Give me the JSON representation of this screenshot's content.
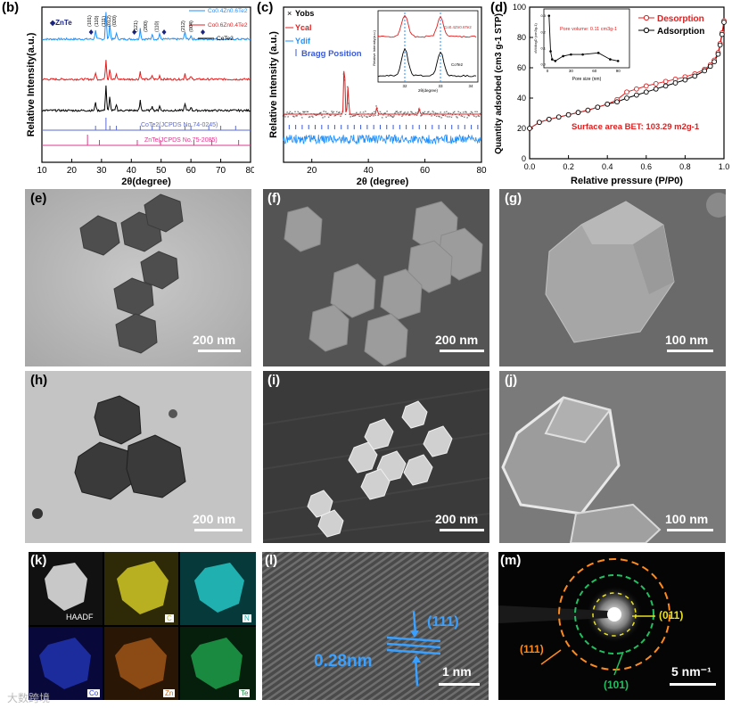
{
  "panels": {
    "b": {
      "label": "(b)",
      "ylabel": "Relative Intensity(a.u.)",
      "xlabel": "2θ(degree)",
      "legend": [
        "Co0.4Zn0.6Te2",
        "Co0.6Zn0.4Te2",
        "CoTe2"
      ],
      "znte_tag": "◆ZnTe",
      "ref_cote2": "CoTe2(JCPDS No.74-0245)",
      "ref_znte": "ZnTe(JCPDS No.75-2085)",
      "peaks": [
        "(101)",
        "(110)",
        "(111)",
        "(012)",
        "(020)",
        "(121)",
        "(200)",
        "(110)",
        "(212)",
        "(004)"
      ]
    },
    "c": {
      "label": "(c)",
      "ylabel": "Relative Intensity (a.u.)",
      "xlabel": "2θ (degree)",
      "legend": [
        "Yobs",
        "Ycal",
        "Ydif",
        "Bragg Position"
      ],
      "inset": {
        "legend_top": "Co0.4Zn0.6Te2",
        "legend_bottom": "CoTe2",
        "xlabel": "2θ(degree)",
        "ylabel": "Relative Intensity(a.u.)"
      }
    },
    "d": {
      "label": "(d)",
      "ylabel": "Quantity adsorbed (cm3 g-1 STP)",
      "xlabel": "Relative pressure (P/P0)",
      "legend": [
        "Desorption",
        "Adsorption"
      ],
      "annotation": "Surface area BET: 103.29 m2g-1",
      "inset": {
        "text": "Pore volume: 0.11 cm3g-1",
        "xlabel": "Pore size (nm)",
        "ylabel": "dV/dlogD (cm3g-1)"
      }
    },
    "e": {
      "label": "(e)",
      "scale": "200 nm"
    },
    "f": {
      "label": "(f)",
      "scale": "200 nm"
    },
    "g": {
      "label": "(g)",
      "scale": "100 nm"
    },
    "h": {
      "label": "(h)",
      "scale": "200 nm"
    },
    "i": {
      "label": "(i)",
      "scale": "200 nm"
    },
    "j": {
      "label": "(j)",
      "scale": "100 nm"
    },
    "k": {
      "label": "(k)",
      "maps": [
        "HAADF",
        "C",
        "N",
        "Co",
        "Zn",
        "Te"
      ]
    },
    "l": {
      "label": "(l)",
      "spacing": "0.28nm",
      "plane": "(111)",
      "scale": "1 nm"
    },
    "m": {
      "label": "(m)",
      "rings": [
        "(011)",
        "(111)",
        "(101)"
      ],
      "scale": "5 nm⁻¹"
    }
  },
  "watermark": "大数跨境",
  "chart_data": [
    {
      "type": "line",
      "panel": "b",
      "xlabel": "2θ(degree)",
      "ylabel": "Relative Intensity(a.u.)",
      "xlim": [
        10,
        80
      ],
      "xticks": [
        10,
        20,
        30,
        40,
        50,
        60,
        70,
        80
      ],
      "series": [
        {
          "name": "Co0.4Zn0.6Te2",
          "color": "#1e90ff"
        },
        {
          "name": "Co0.6Zn0.4Te2",
          "color": "#e02020"
        },
        {
          "name": "CoTe2",
          "color": "#000000"
        }
      ]
    },
    {
      "type": "line",
      "panel": "c",
      "xlabel": "2θ (degree)",
      "ylabel": "Relative Intensity (a.u.)",
      "xlim": [
        10,
        80
      ],
      "xticks": [
        20,
        40,
        60,
        80
      ],
      "series": [
        {
          "name": "Yobs",
          "color": "#000000"
        },
        {
          "name": "Ycal",
          "color": "#e02020"
        },
        {
          "name": "Ydif",
          "color": "#1e90ff"
        },
        {
          "name": "Bragg Position",
          "color": "#2040c0"
        }
      ]
    },
    {
      "type": "line",
      "panel": "d",
      "xlabel": "Relative pressure (P/P0)",
      "ylabel": "Quantity adsorbed (cm3 g-1 STP)",
      "xlim": [
        0.0,
        1.0
      ],
      "ylim": [
        0,
        100
      ],
      "xticks": [
        0.0,
        0.2,
        0.4,
        0.6,
        0.8,
        1.0
      ],
      "yticks": [
        0,
        20,
        40,
        60,
        80,
        100
      ],
      "series": [
        {
          "name": "Desorption",
          "color": "#e02020",
          "x": [
            0.0,
            0.05,
            0.1,
            0.15,
            0.2,
            0.25,
            0.3,
            0.35,
            0.4,
            0.45,
            0.5,
            0.55,
            0.6,
            0.65,
            0.7,
            0.75,
            0.8,
            0.85,
            0.9,
            0.93,
            0.95,
            0.97,
            0.98,
            0.99,
            1.0
          ],
          "y": [
            20,
            24,
            26,
            27.5,
            29,
            30.5,
            32,
            34,
            36,
            39,
            44,
            46,
            48,
            49.5,
            51,
            52.5,
            54,
            56,
            59,
            62,
            65,
            70,
            76,
            83,
            91
          ]
        },
        {
          "name": "Adsorption",
          "color": "#000000",
          "x": [
            0.0,
            0.05,
            0.1,
            0.15,
            0.2,
            0.25,
            0.3,
            0.35,
            0.4,
            0.45,
            0.5,
            0.55,
            0.6,
            0.65,
            0.7,
            0.75,
            0.8,
            0.85,
            0.9,
            0.93,
            0.95,
            0.97,
            0.98,
            0.99,
            1.0
          ],
          "y": [
            20,
            24,
            26,
            27.5,
            29,
            30.5,
            32,
            34,
            36,
            37.5,
            40,
            42,
            44,
            46,
            48,
            50,
            52,
            54.5,
            58,
            61,
            64,
            69,
            75,
            82,
            90
          ]
        }
      ],
      "inset": {
        "xlabel": "Pore size (nm)",
        "ylabel": "dV/dlogD (cm3g-1)",
        "xticks": [
          0,
          30,
          60,
          90
        ],
        "yticks": [
          0.0,
          0.1,
          0.2,
          0.3
        ],
        "x": [
          2,
          4,
          6,
          10,
          20,
          30,
          45,
          65,
          80,
          90
        ],
        "y": [
          0.3,
          0.08,
          0.03,
          0.02,
          0.05,
          0.06,
          0.06,
          0.07,
          0.03,
          0.02
        ]
      }
    }
  ]
}
